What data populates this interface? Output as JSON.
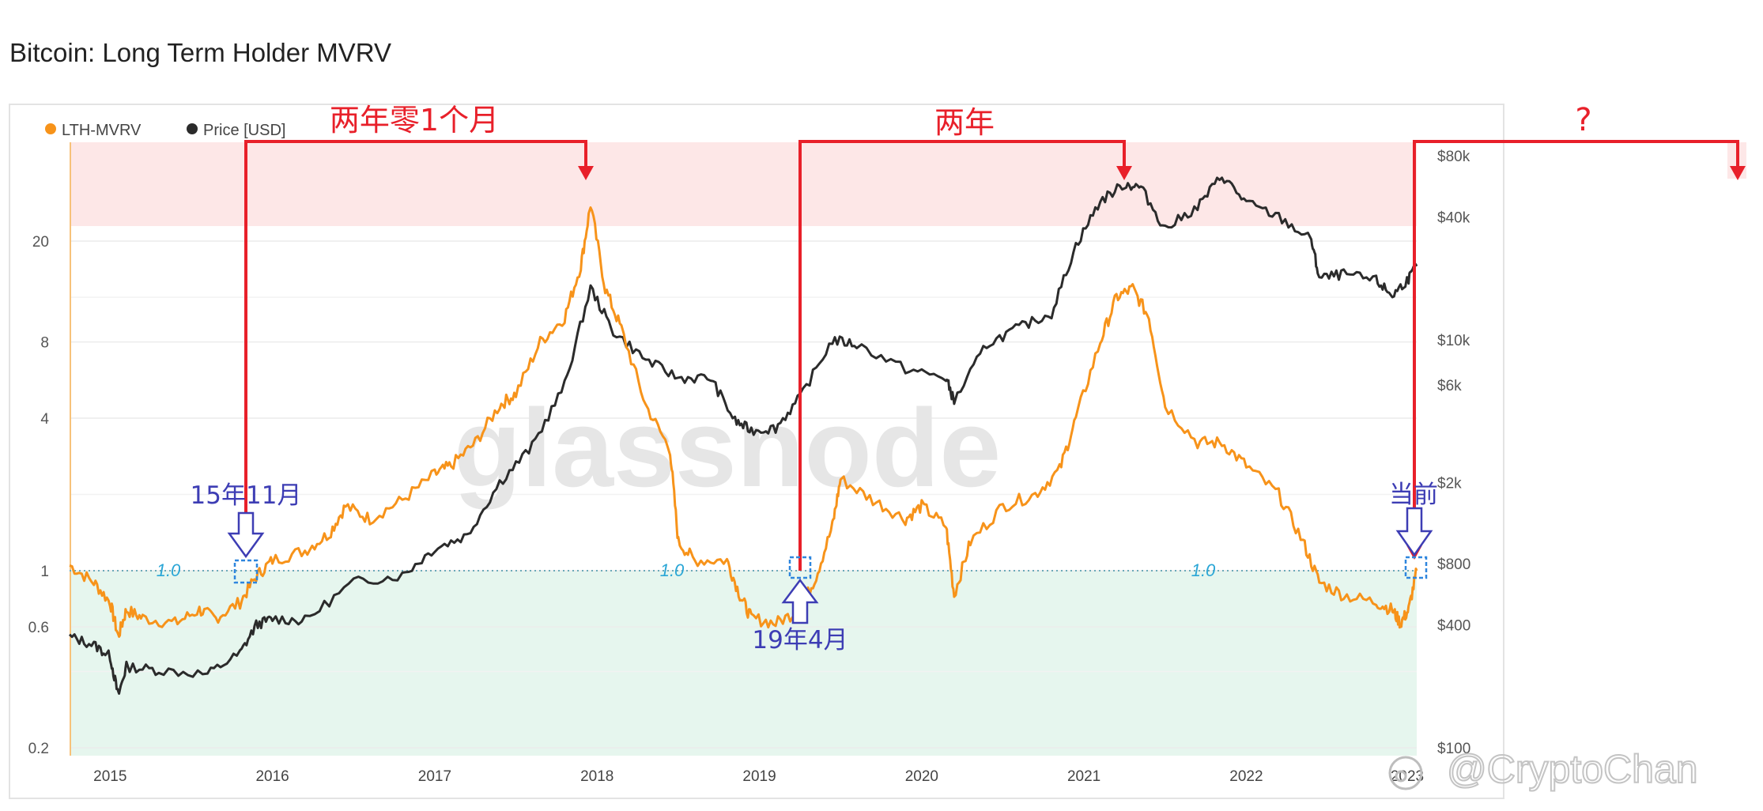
{
  "title": "Bitcoin: Long Term Holder MVRV",
  "legend": [
    {
      "label": "LTH-MVRV",
      "color": "#f7931a"
    },
    {
      "label": "Price [USD]",
      "color": "#2b2b2b"
    }
  ],
  "watermark": "glassnode",
  "credit": "@CryptoChan",
  "chart_data": {
    "type": "line",
    "title": "Bitcoin: Long Term Holder MVRV",
    "x_ticks": [
      "2015",
      "2016",
      "2017",
      "2018",
      "2019",
      "2020",
      "2021",
      "2022",
      "2023"
    ],
    "left_axis": {
      "label": "LTH-MVRV",
      "scale": "log",
      "range": [
        0.2,
        40
      ],
      "ticks": [
        0.2,
        0.6,
        1,
        4,
        8,
        20
      ],
      "tick_labels": [
        "0.2",
        "0.6",
        "1",
        "4",
        "8",
        "20"
      ]
    },
    "right_axis": {
      "label": "Price [USD]",
      "scale": "log",
      "range": [
        100,
        100000
      ],
      "ticks": [
        100,
        400,
        800,
        2000,
        6000,
        10000,
        40000,
        80000
      ],
      "tick_labels": [
        "$100",
        "$400",
        "$800",
        "$2k",
        "$6k",
        "$10k",
        "$40k",
        "$80k"
      ]
    },
    "zones": [
      {
        "name": "overheated",
        "from": 20,
        "to": 40,
        "color": "#fde7e7"
      },
      {
        "name": "undervalued",
        "from": 0.2,
        "to": 0.95,
        "color": "#e6f6ee"
      }
    ],
    "reference_line": {
      "value": 0.95,
      "label": "1.0"
    },
    "series": [
      {
        "name": "LTH-MVRV",
        "axis": "left",
        "color": "#f7931a",
        "x": [
          2014.75,
          2014.9,
          2015.0,
          2015.05,
          2015.1,
          2015.2,
          2015.4,
          2015.55,
          2015.65,
          2015.8,
          2015.9,
          2016.0,
          2016.2,
          2016.35,
          2016.45,
          2016.6,
          2016.8,
          2017.0,
          2017.1,
          2017.25,
          2017.4,
          2017.5,
          2017.65,
          2017.8,
          2017.9,
          2017.96,
          2018.05,
          2018.15,
          2018.3,
          2018.45,
          2018.5,
          2018.6,
          2018.8,
          2018.88,
          2018.95,
          2019.1,
          2019.25,
          2019.35,
          2019.45,
          2019.5,
          2019.7,
          2019.9,
          2020.0,
          2020.15,
          2020.2,
          2020.3,
          2020.5,
          2020.7,
          2020.85,
          2020.95,
          2021.1,
          2021.2,
          2021.3,
          2021.4,
          2021.5,
          2021.7,
          2021.85,
          2022.0,
          2022.2,
          2022.35,
          2022.45,
          2022.6,
          2022.8,
          2022.9,
          2022.95,
          2023.0,
          2023.05
        ],
        "y": [
          1.05,
          0.9,
          0.75,
          0.55,
          0.7,
          0.65,
          0.62,
          0.7,
          0.65,
          0.75,
          0.95,
          1.1,
          1.2,
          1.4,
          1.8,
          1.6,
          1.9,
          2.4,
          2.6,
          3.2,
          4.5,
          5,
          8,
          10,
          16,
          28,
          13,
          9,
          4.5,
          3,
          1.3,
          1.1,
          1.1,
          0.8,
          0.65,
          0.62,
          0.7,
          0.95,
          1.5,
          2.3,
          1.9,
          1.6,
          1.8,
          1.5,
          0.8,
          1.3,
          1.8,
          2,
          2.5,
          4,
          8,
          12,
          13,
          10,
          4.5,
          3.2,
          3.2,
          2.6,
          2,
          1.3,
          0.9,
          0.8,
          0.75,
          0.7,
          0.62,
          0.7,
          1.0
        ]
      },
      {
        "name": "Price [USD]",
        "axis": "right",
        "color": "#2b2b2b",
        "x": [
          2014.75,
          2014.9,
          2015.0,
          2015.05,
          2015.1,
          2015.3,
          2015.6,
          2015.8,
          2015.9,
          2016.0,
          2016.2,
          2016.5,
          2016.8,
          2017.0,
          2017.2,
          2017.4,
          2017.6,
          2017.8,
          2017.96,
          2018.1,
          2018.3,
          2018.5,
          2018.7,
          2018.85,
          2018.95,
          2019.1,
          2019.25,
          2019.45,
          2019.6,
          2019.9,
          2020.15,
          2020.2,
          2020.4,
          2020.6,
          2020.8,
          2020.95,
          2021.1,
          2021.25,
          2021.35,
          2021.5,
          2021.7,
          2021.85,
          2022.0,
          2022.2,
          2022.4,
          2022.45,
          2022.6,
          2022.8,
          2022.9,
          2023.0,
          2023.05
        ],
        "y": [
          350,
          320,
          280,
          180,
          250,
          240,
          230,
          290,
          400,
          430,
          420,
          650,
          700,
          950,
          1100,
          2000,
          3000,
          6000,
          18000,
          11000,
          8000,
          6500,
          6500,
          4000,
          3600,
          3700,
          5200,
          10000,
          9500,
          7200,
          6500,
          5000,
          9500,
          11500,
          13500,
          29000,
          48000,
          58000,
          56000,
          35000,
          45000,
          64000,
          47000,
          40000,
          31000,
          20000,
          21000,
          19500,
          16500,
          20000,
          23000
        ]
      }
    ]
  },
  "annotations": {
    "arrows": [
      {
        "label": "两年零1个月"
      },
      {
        "label": "两年"
      },
      {
        "label": "?"
      }
    ],
    "markers": [
      {
        "label": "15年11月",
        "position": "above"
      },
      {
        "label": "19年4月",
        "position": "below"
      },
      {
        "label": "当前",
        "position": "above"
      }
    ]
  }
}
